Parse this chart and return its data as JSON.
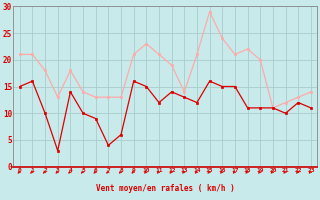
{
  "x": [
    0,
    1,
    2,
    3,
    4,
    5,
    6,
    7,
    8,
    9,
    10,
    11,
    12,
    13,
    14,
    15,
    16,
    17,
    18,
    19,
    20,
    21,
    22,
    23
  ],
  "rafales": [
    21,
    21,
    18,
    13,
    18,
    14,
    13,
    13,
    13,
    21,
    23,
    21,
    19,
    14,
    21,
    29,
    24,
    21,
    22,
    20,
    11,
    12,
    13,
    14
  ],
  "moyen": [
    15,
    16,
    10,
    3,
    14,
    10,
    9,
    4,
    6,
    16,
    15,
    12,
    14,
    13,
    12,
    16,
    15,
    15,
    11,
    11,
    11,
    10,
    12,
    11
  ],
  "line_color_rafales": "#ffaaaa",
  "line_color_moyen": "#dd0000",
  "bg_color": "#c8eaea",
  "grid_color": "#aacccc",
  "xlabel": "Vent moyen/en rafales ( km/h )",
  "tick_color": "#dd0000",
  "spine_color": "#888888",
  "ylim": [
    0,
    30
  ],
  "yticks": [
    0,
    5,
    10,
    15,
    20,
    25,
    30
  ],
  "xlim": [
    -0.5,
    23.5
  ],
  "arrow_color": "#dd0000"
}
